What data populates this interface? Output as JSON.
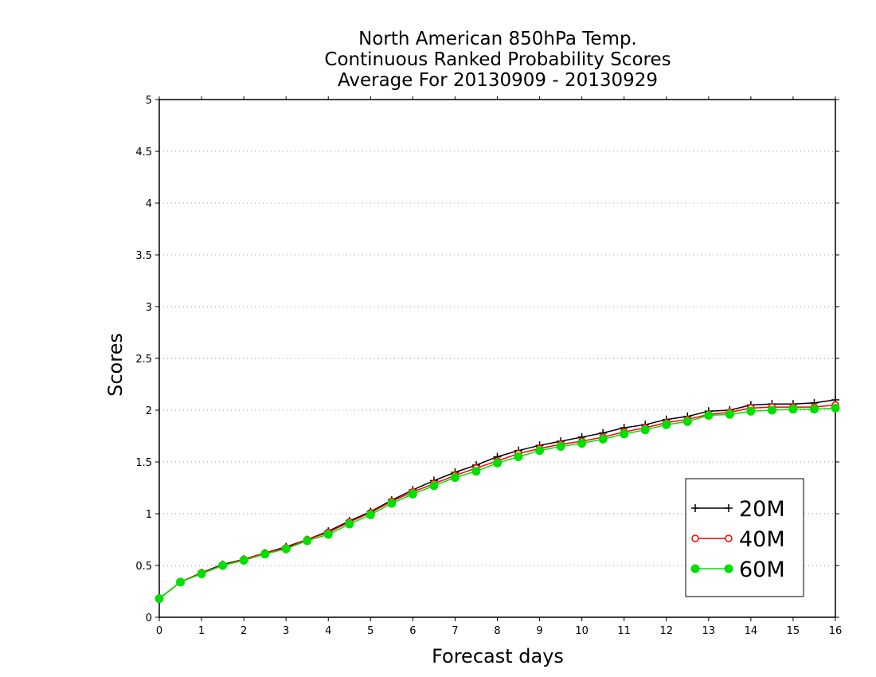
{
  "chart_data": {
    "type": "line",
    "title": [
      "North American 850hPa Temp.",
      "Continuous Ranked Probability Scores",
      "Average For 20130909 - 20130929"
    ],
    "xlabel": "Forecast days",
    "ylabel": "Scores",
    "xlim": [
      0,
      16
    ],
    "ylim": [
      0,
      5
    ],
    "xticks": [
      0,
      1,
      2,
      3,
      4,
      5,
      6,
      7,
      8,
      9,
      10,
      11,
      12,
      13,
      14,
      15,
      16
    ],
    "yticks": [
      0,
      0.5,
      1,
      1.5,
      2,
      2.5,
      3,
      3.5,
      4,
      4.5,
      5
    ],
    "ytick_labels": [
      "0",
      "0.5",
      "1",
      "1.5",
      "2",
      "2.5",
      "3",
      "3.5",
      "4",
      "4.5",
      "5"
    ],
    "grid": "horizontal dotted",
    "legend_position": "bottom-right",
    "x": [
      0,
      0.5,
      1,
      1.5,
      2,
      2.5,
      3,
      3.5,
      4,
      4.5,
      5,
      5.5,
      6,
      6.5,
      7,
      7.5,
      8,
      8.5,
      9,
      9.5,
      10,
      10.5,
      11,
      11.5,
      12,
      12.5,
      13,
      13.5,
      14,
      14.5,
      15,
      15.5,
      16
    ],
    "series": [
      {
        "name": "20M",
        "color": "#000000",
        "marker": "plus",
        "values": [
          0.18,
          0.34,
          0.43,
          0.51,
          0.56,
          0.62,
          0.68,
          0.75,
          0.83,
          0.93,
          1.02,
          1.13,
          1.23,
          1.32,
          1.4,
          1.47,
          1.55,
          1.61,
          1.66,
          1.7,
          1.74,
          1.78,
          1.83,
          1.86,
          1.91,
          1.94,
          1.99,
          2.0,
          2.05,
          2.06,
          2.06,
          2.07,
          2.1
        ]
      },
      {
        "name": "40M",
        "color": "#ff0000",
        "marker": "circle",
        "values": [
          0.18,
          0.34,
          0.43,
          0.5,
          0.56,
          0.62,
          0.67,
          0.75,
          0.82,
          0.92,
          1.01,
          1.12,
          1.21,
          1.29,
          1.37,
          1.44,
          1.51,
          1.58,
          1.63,
          1.67,
          1.7,
          1.74,
          1.79,
          1.83,
          1.88,
          1.91,
          1.96,
          1.98,
          2.02,
          2.03,
          2.03,
          2.03,
          2.05
        ]
      },
      {
        "name": "60M",
        "color": "#00e000",
        "marker": "filled-circle",
        "values": [
          0.18,
          0.34,
          0.42,
          0.5,
          0.55,
          0.61,
          0.66,
          0.74,
          0.8,
          0.9,
          0.99,
          1.1,
          1.19,
          1.27,
          1.35,
          1.41,
          1.49,
          1.55,
          1.61,
          1.65,
          1.68,
          1.72,
          1.77,
          1.81,
          1.86,
          1.89,
          1.95,
          1.96,
          1.99,
          2.0,
          2.01,
          2.01,
          2.02
        ]
      }
    ]
  }
}
